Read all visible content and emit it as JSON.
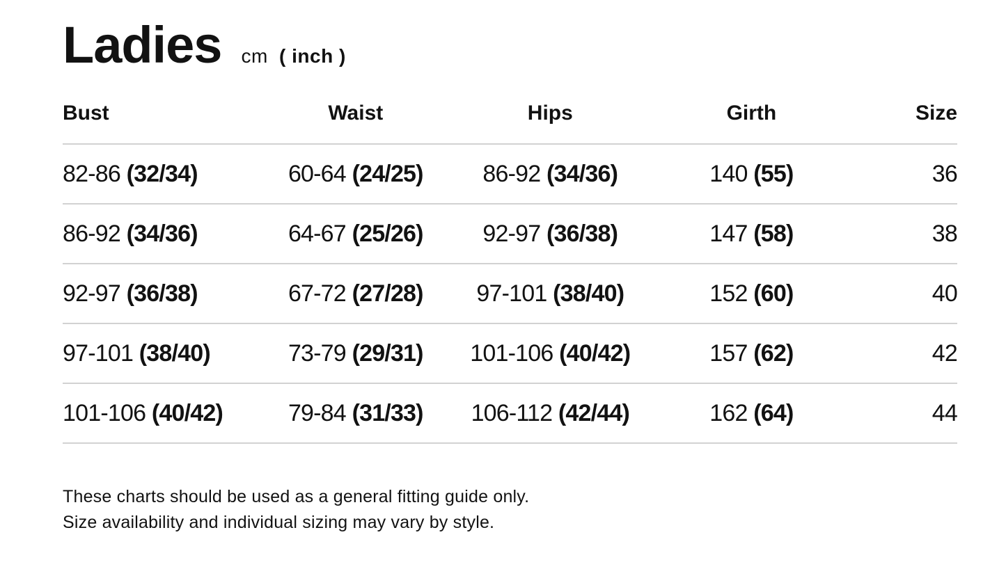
{
  "header": {
    "title": "Ladies",
    "unit": "cm",
    "alt_unit": "( inch )"
  },
  "table": {
    "headers": {
      "bust": "Bust",
      "waist": "Waist",
      "hips": "Hips",
      "girth": "Girth",
      "size": "Size"
    },
    "rows": [
      {
        "bust_cm": "82-86",
        "bust_in": "(32/34)",
        "waist_cm": "60-64",
        "waist_in": "(24/25)",
        "hips_cm": "86-92",
        "hips_in": "(34/36)",
        "girth_cm": "140",
        "girth_in": "(55)",
        "size": "36"
      },
      {
        "bust_cm": "86-92",
        "bust_in": "(34/36)",
        "waist_cm": "64-67",
        "waist_in": "(25/26)",
        "hips_cm": "92-97",
        "hips_in": "(36/38)",
        "girth_cm": "147",
        "girth_in": "(58)",
        "size": "38"
      },
      {
        "bust_cm": "92-97",
        "bust_in": "(36/38)",
        "waist_cm": "67-72",
        "waist_in": "(27/28)",
        "hips_cm": "97-101",
        "hips_in": "(38/40)",
        "girth_cm": "152",
        "girth_in": "(60)",
        "size": "40"
      },
      {
        "bust_cm": "97-101",
        "bust_in": "(38/40)",
        "waist_cm": "73-79",
        "waist_in": "(29/31)",
        "hips_cm": "101-106",
        "hips_in": "(40/42)",
        "girth_cm": "157",
        "girth_in": "(62)",
        "size": "42"
      },
      {
        "bust_cm": "101-106",
        "bust_in": "(40/42)",
        "waist_cm": "79-84",
        "waist_in": "(31/33)",
        "hips_cm": "106-112",
        "hips_in": "(42/44)",
        "girth_cm": "162",
        "girth_in": "(64)",
        "size": "44"
      }
    ]
  },
  "footer": {
    "line1": "These charts should be used as a general fitting guide only.",
    "line2": "Size availability and individual sizing may vary by style."
  },
  "colors": {
    "text": "#121212",
    "divider": "#d2d2d2",
    "background": "#ffffff"
  }
}
